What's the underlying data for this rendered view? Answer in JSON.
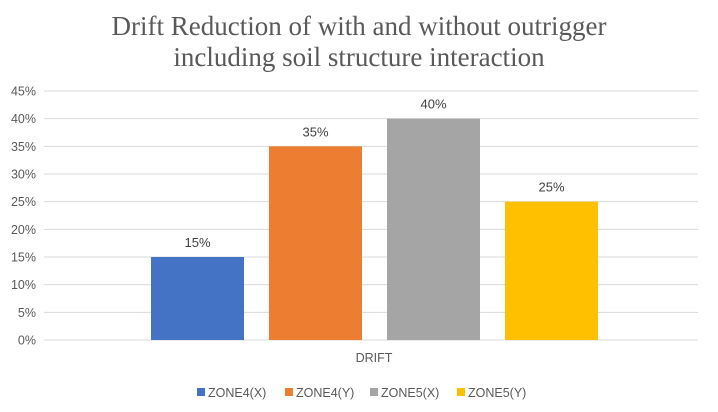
{
  "chart_data": {
    "type": "bar",
    "title_lines": [
      "Drift Reduction of with and without outrigger",
      "including soil structure interaction"
    ],
    "categories": [
      "DRIFT"
    ],
    "series": [
      {
        "name": "ZONE4(X)",
        "values": [
          0.15
        ],
        "label": "15%",
        "color": "#4472c4"
      },
      {
        "name": "ZONE4(Y)",
        "values": [
          0.35
        ],
        "label": "35%",
        "color": "#ed7d31"
      },
      {
        "name": "ZONE5(X)",
        "values": [
          0.4
        ],
        "label": "40%",
        "color": "#a5a5a5"
      },
      {
        "name": "ZONE5(Y)",
        "values": [
          0.25
        ],
        "label": "25%",
        "color": "#ffc000"
      }
    ],
    "ylim": [
      0,
      0.45
    ],
    "yticks": [
      "0%",
      "5%",
      "10%",
      "15%",
      "20%",
      "25%",
      "30%",
      "35%",
      "40%",
      "45%"
    ],
    "grid": true,
    "legend_position": "bottom"
  }
}
